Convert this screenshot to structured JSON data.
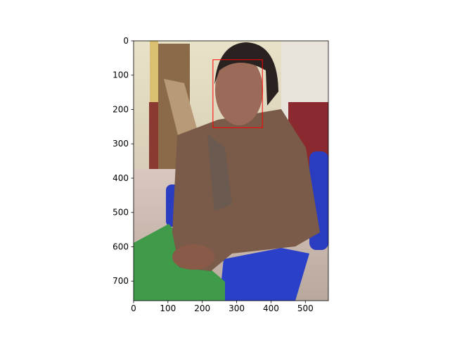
{
  "chart_data": {
    "type": "image",
    "xlim": [
      0,
      567
    ],
    "ylim": [
      757,
      0
    ],
    "xticks": [
      0,
      100,
      200,
      300,
      400,
      500
    ],
    "yticks": [
      0,
      100,
      200,
      300,
      400,
      500,
      600,
      700
    ],
    "box": {
      "x": 231,
      "y": 55,
      "width": 144,
      "height": 198,
      "color": "#ff0000"
    }
  }
}
